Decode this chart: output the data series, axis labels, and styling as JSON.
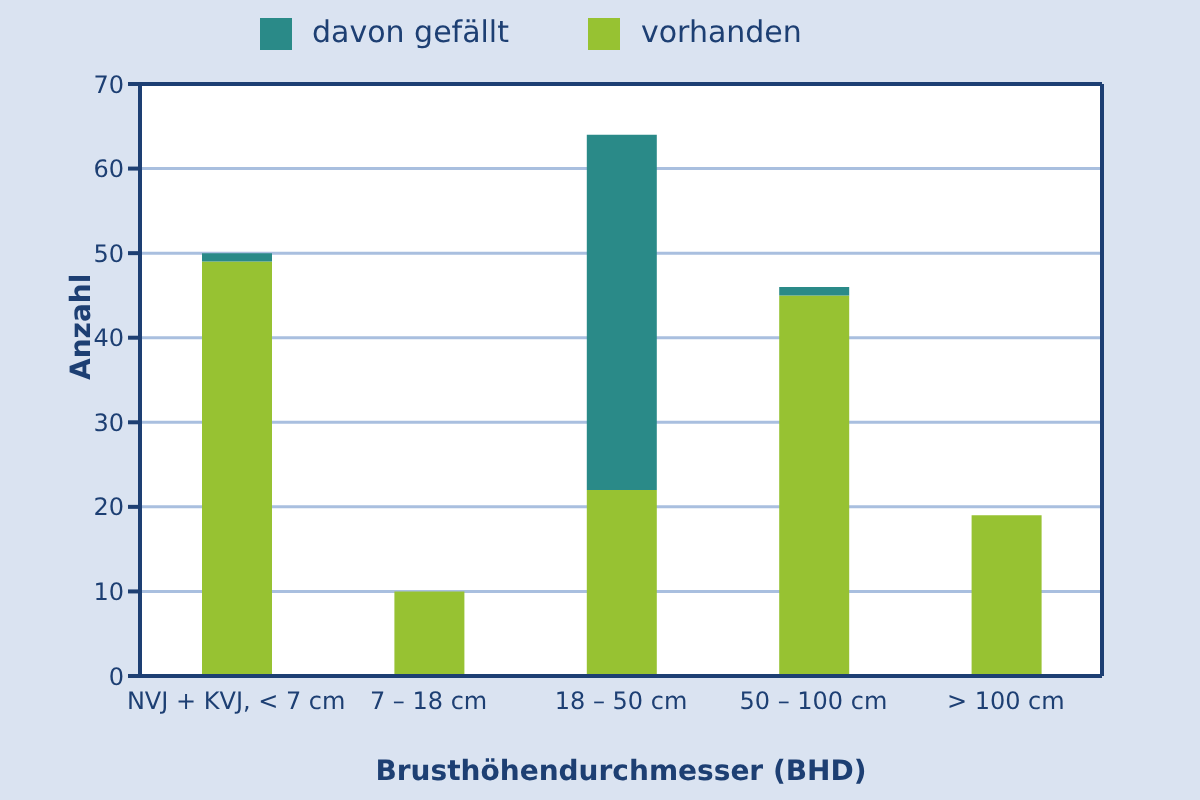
{
  "chart_data": {
    "type": "bar",
    "stacked": true,
    "xlabel": "Brusthöhendurchmesser (BHD)",
    "ylabel": "Anzahl",
    "categories": [
      "NVJ + KVJ, < 7 cm",
      "7 – 18 cm",
      "18 – 50 cm",
      "50 – 100 cm",
      "> 100 cm"
    ],
    "series": [
      {
        "name": "vorhanden",
        "color": "#97c232",
        "values": [
          49,
          10,
          22,
          45,
          19
        ]
      },
      {
        "name": "davon gefällt",
        "color": "#2a8a88",
        "values": [
          1,
          0,
          42,
          1,
          0
        ]
      }
    ],
    "ylim": [
      0,
      70
    ],
    "yticks": [
      0,
      10,
      20,
      30,
      40,
      50,
      60,
      70
    ],
    "grid": "y",
    "legend": "top"
  }
}
